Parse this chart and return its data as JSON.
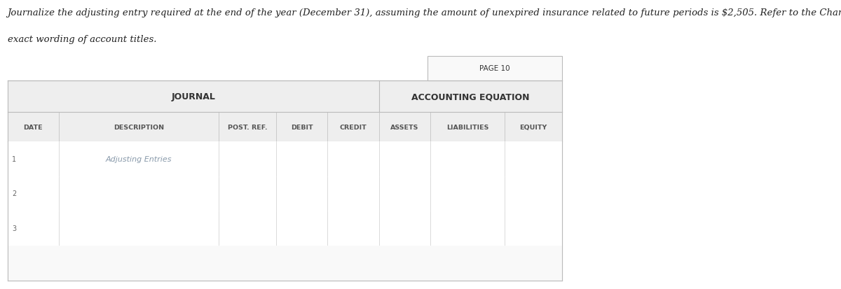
{
  "instruction_line1": "Journalize the adjusting entry required at the end of the year (December 31), assuming the amount of unexpired insurance related to future periods is $2,505. Refer to the Chart of Accounts for",
  "instruction_line2": "exact wording of account titles.",
  "page_label": "PAGE 10",
  "journal_header": "JOURNAL",
  "accounting_eq_header": "ACCOUNTING EQUATION",
  "col_headers": [
    "DATE",
    "DESCRIPTION",
    "POST. REF.",
    "DEBIT",
    "CREDIT",
    "ASSETS",
    "LIABILITIES",
    "EQUITY"
  ],
  "adjusting_entries_label": "Adjusting Entries",
  "row_numbers": [
    "1",
    "2",
    "3"
  ],
  "bg_color": "#ffffff",
  "table_bg": "#f5f5f5",
  "header_bg": "#e8e8e8",
  "border_color": "#cccccc",
  "text_color": "#333333",
  "header_text_color": "#555555",
  "adjusting_entries_color": "#8899aa",
  "instruction_font_size": 9.5,
  "header_font_size": 8.5,
  "col_font_size": 7.5,
  "row_num_font_size": 7.5
}
